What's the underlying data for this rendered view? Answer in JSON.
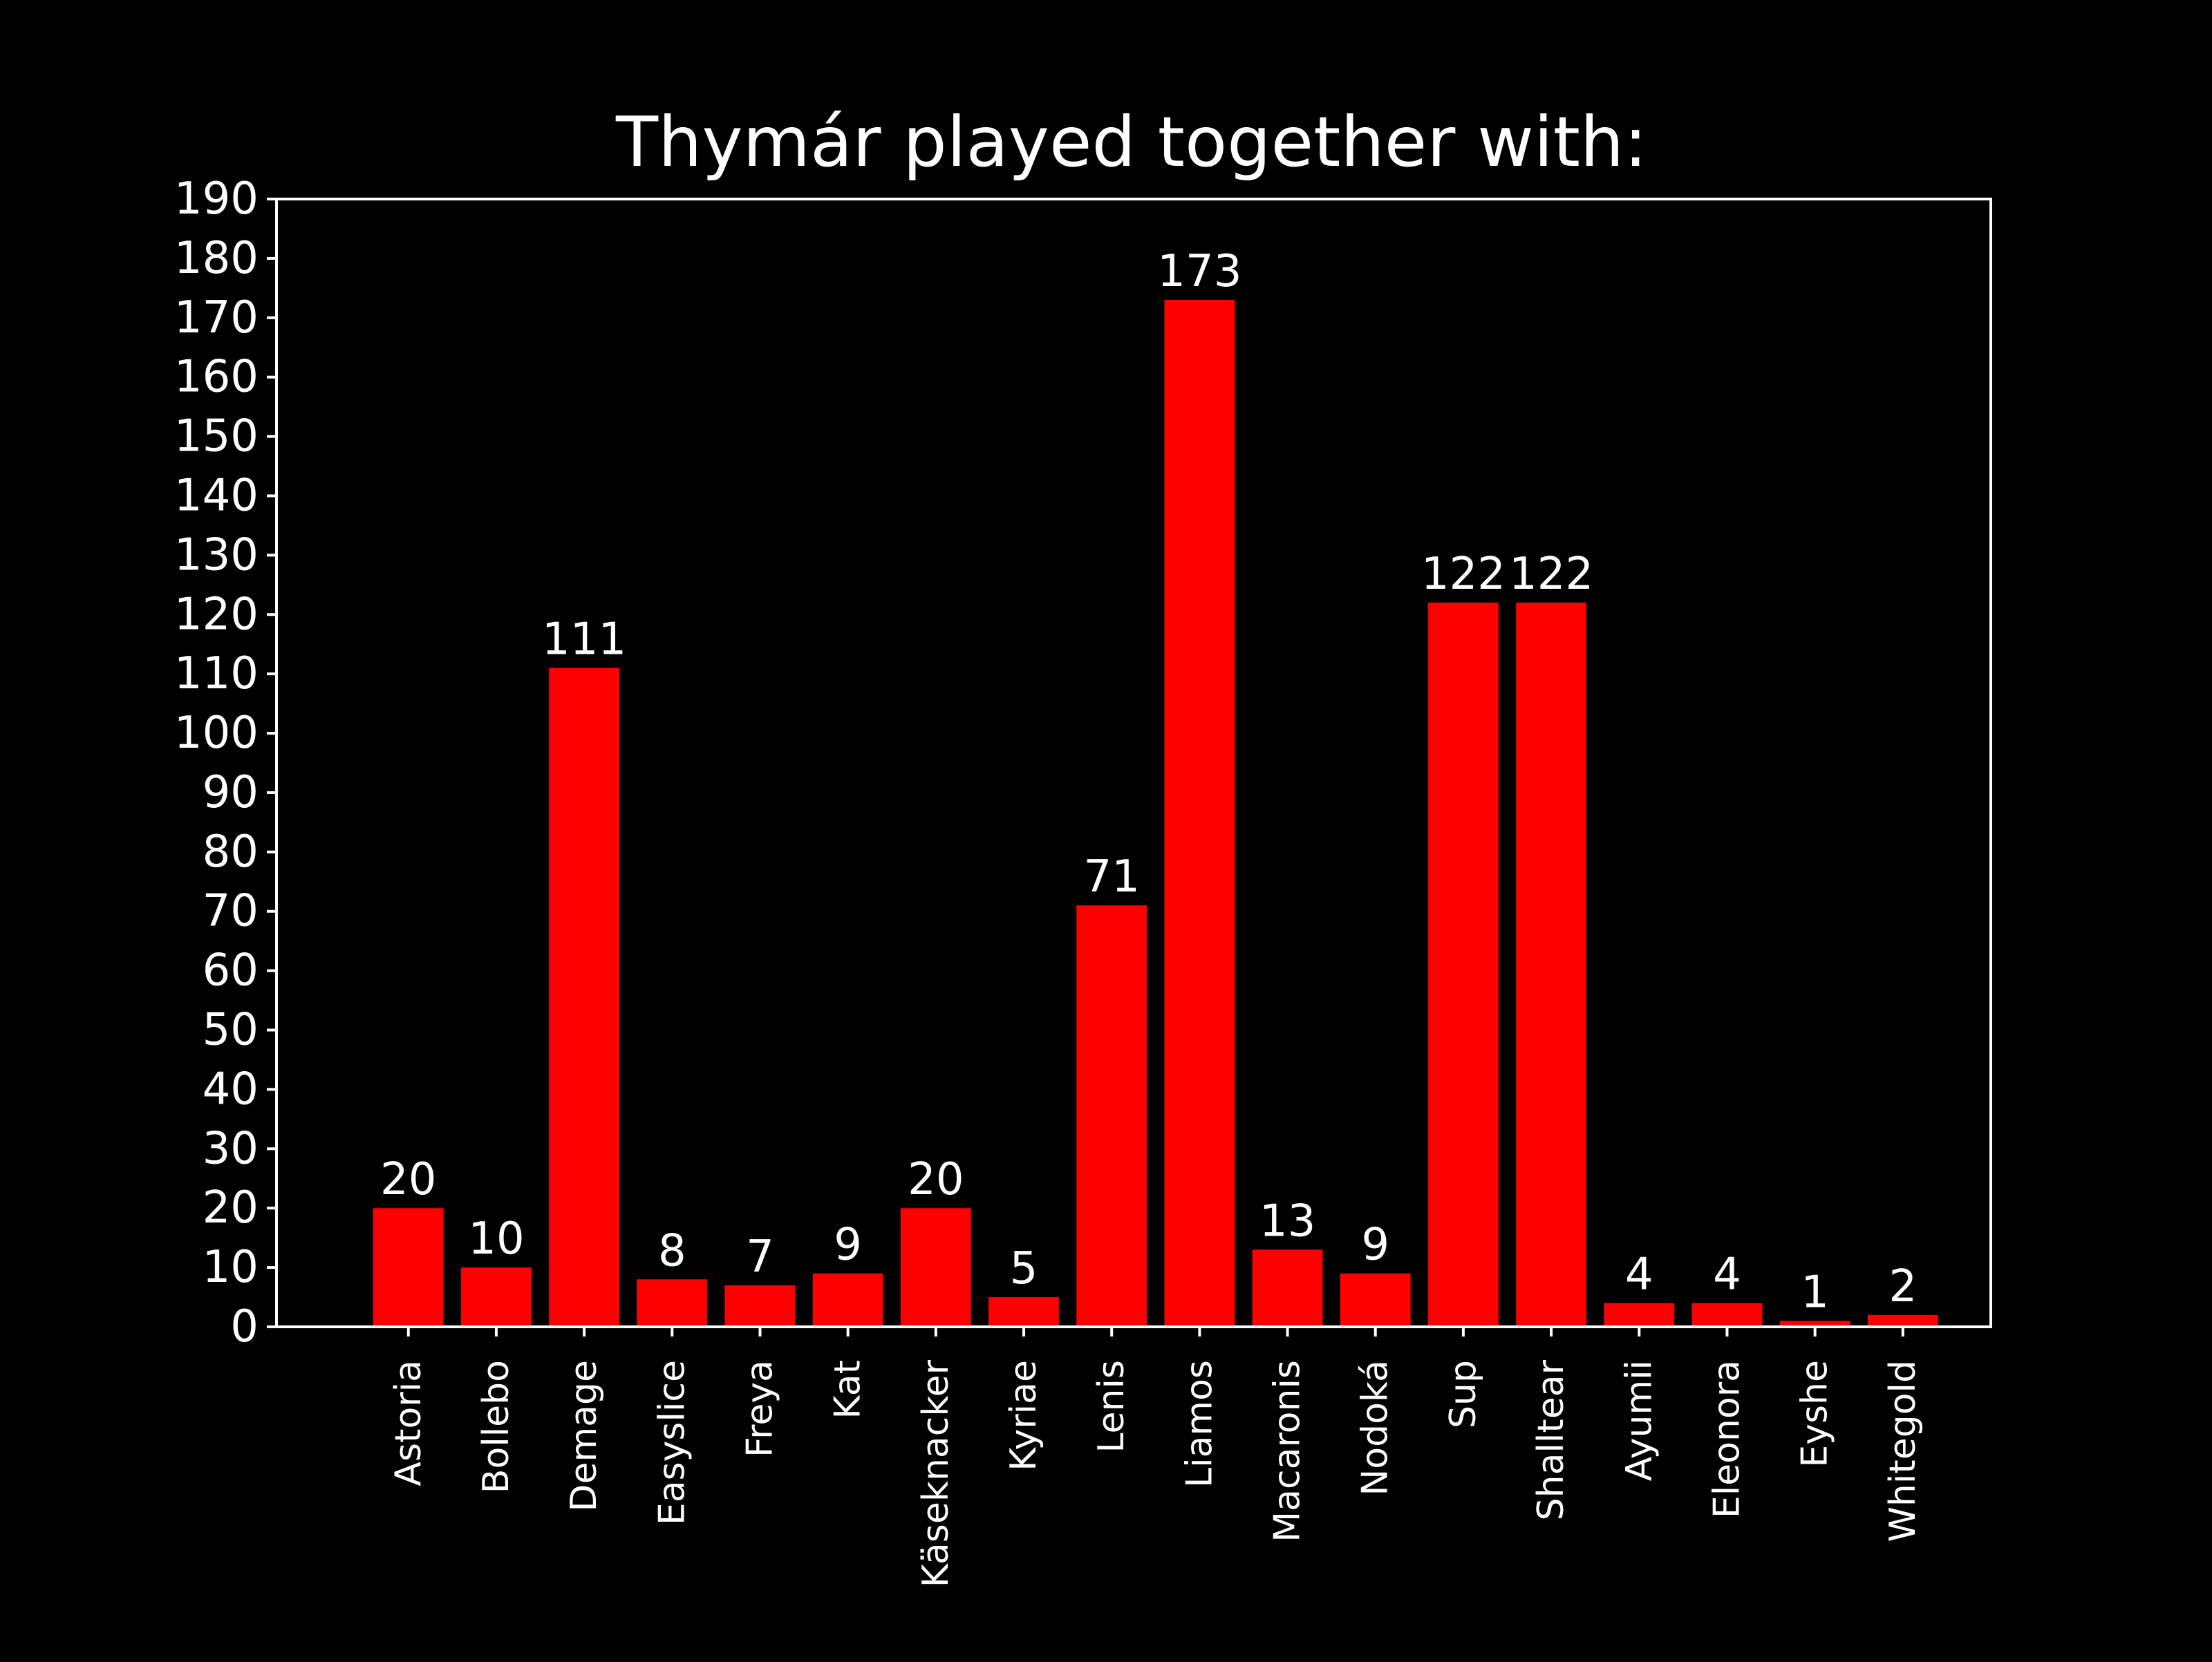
{
  "chart_data": {
    "type": "bar",
    "title": "Thymár played together with:",
    "xlabel": "",
    "ylabel": "",
    "categories": [
      "Astoria",
      "Bollebo",
      "Demage",
      "Easyslice",
      "Freya",
      "Kat",
      "Käseknacker",
      "Kyriae",
      "Lenis",
      "Liamos",
      "Macaronis",
      "Nodoká",
      "Sup",
      "Shalltear",
      "Ayumii",
      "Eleonora",
      "Eyshe",
      "Whitegold"
    ],
    "values": [
      20,
      10,
      111,
      8,
      7,
      9,
      20,
      5,
      71,
      173,
      13,
      9,
      122,
      122,
      4,
      4,
      1,
      2
    ],
    "ylim": [
      0,
      190
    ],
    "yticks": [
      0,
      10,
      20,
      30,
      40,
      50,
      60,
      70,
      80,
      90,
      100,
      110,
      120,
      130,
      140,
      150,
      160,
      170,
      180,
      190
    ],
    "xlim": [
      -1.5,
      18.0
    ],
    "grid": false,
    "legend": "none",
    "data_labels": true,
    "colors": {
      "background": "#000000",
      "bar": "#ff0000",
      "axes": "#ffffff",
      "text": "#ffffff"
    }
  }
}
